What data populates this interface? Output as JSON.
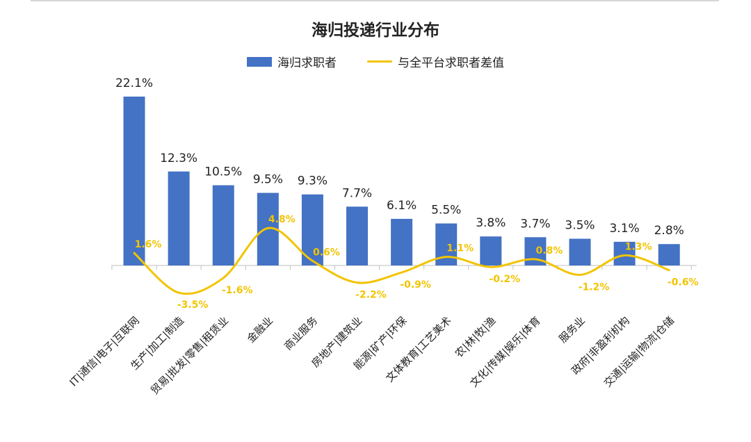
{
  "chart_data": {
    "type": "bar",
    "title": "海归投递行业分布",
    "categories": [
      "IT|通信|电子|互联网",
      "生产|加工|制造",
      "贸易|批发|零售|租赁业",
      "金融业",
      "商业服务",
      "房地产|建筑业",
      "能源|矿产|环保",
      "文体教育|工艺美术",
      "农|林|牧|渔",
      "文化|传媒|娱乐|体育",
      "服务业",
      "政府|非盈利机构",
      "交通|运输|物流|仓储"
    ],
    "series": [
      {
        "name": "海归求职者",
        "type": "bar",
        "color": "#4472c4",
        "values": [
          22.1,
          12.3,
          10.5,
          9.5,
          9.3,
          7.7,
          6.1,
          5.5,
          3.8,
          3.7,
          3.5,
          3.1,
          2.8
        ],
        "labels": [
          "22.1%",
          "12.3%",
          "10.5%",
          "9.5%",
          "9.3%",
          "7.7%",
          "6.1%",
          "5.5%",
          "3.8%",
          "3.7%",
          "3.5%",
          "3.1%",
          "2.8%"
        ]
      },
      {
        "name": "与全平台求职者差值",
        "type": "line",
        "smooth": true,
        "color": "#f2c400",
        "values": [
          1.6,
          -3.5,
          -1.6,
          4.8,
          0.6,
          -2.2,
          -0.9,
          1.1,
          -0.2,
          0.8,
          -1.2,
          1.3,
          -0.6
        ],
        "labels": [
          "1.6%",
          "-3.5%",
          "-1.6%",
          "4.8%",
          "0.6%",
          "-2.2%",
          "-0.9%",
          "1.1%",
          "-0.2%",
          "0.8%",
          "-1.2%",
          "1.3%",
          "-0.6%"
        ]
      }
    ],
    "legend_position": "top-center",
    "grid": false
  }
}
